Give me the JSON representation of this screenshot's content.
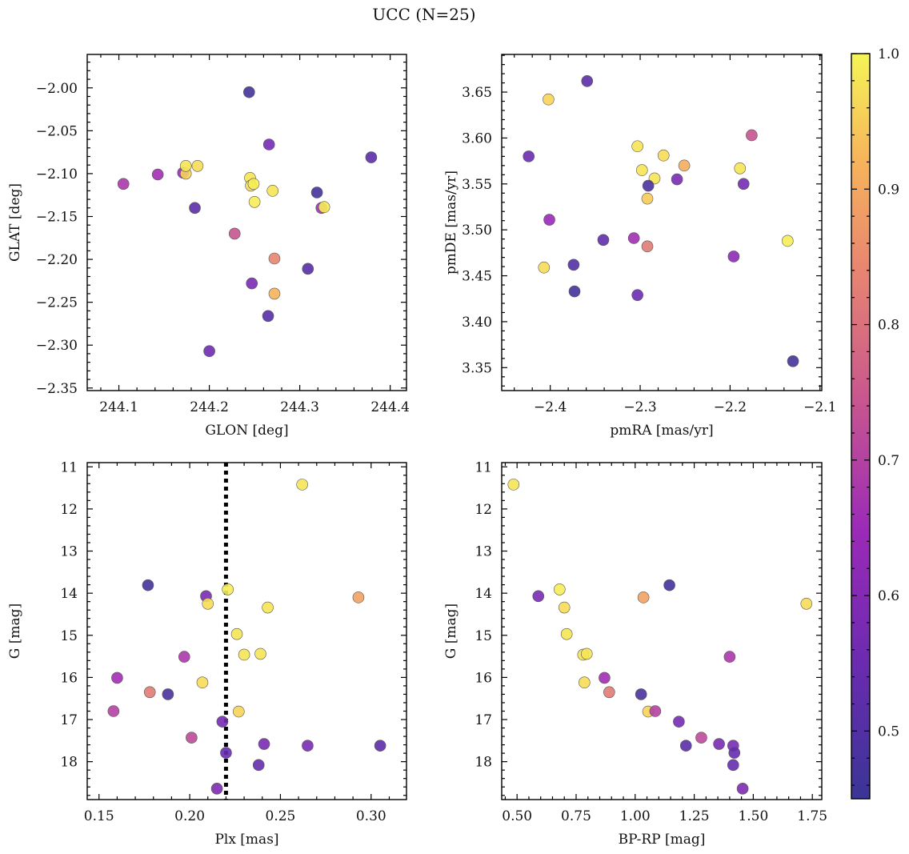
{
  "figure": {
    "title": "UCC (N=25)"
  },
  "colorbar": {
    "min": 0.45,
    "max": 1.0,
    "ticks": [
      0.5,
      0.6,
      0.7,
      0.8,
      0.9,
      1.0
    ],
    "tick_labels": [
      "0.5",
      "0.6",
      "0.7",
      "0.8",
      "0.9",
      "1.0"
    ],
    "colormap": "plasma"
  },
  "chart_data": [
    {
      "type": "scatter",
      "xlabel": "GLON [deg]",
      "ylabel": "GLAT [deg]",
      "xlim": [
        244.065,
        244.418
      ],
      "ylim": [
        -2.353,
        -1.961
      ],
      "xticks": [
        244.1,
        244.2,
        244.3,
        244.4
      ],
      "xtick_labels": [
        "244.1",
        "244.2",
        "244.3",
        "244.4"
      ],
      "yticks": [
        -2.0,
        -2.05,
        -2.1,
        -2.15,
        -2.2,
        -2.25,
        -2.3,
        -2.35
      ],
      "ytick_labels": [
        "−2.00",
        "−2.05",
        "−2.10",
        "−2.15",
        "−2.20",
        "−2.25",
        "−2.30",
        "−2.35"
      ],
      "points": [
        {
          "x": 244.244,
          "y": -2.005,
          "c": 0.47
        },
        {
          "x": 244.266,
          "y": -2.066,
          "c": 0.57
        },
        {
          "x": 244.379,
          "y": -2.081,
          "c": 0.52
        },
        {
          "x": 244.105,
          "y": -2.112,
          "c": 0.68
        },
        {
          "x": 244.143,
          "y": -2.101,
          "c": 0.66
        },
        {
          "x": 244.171,
          "y": -2.099,
          "c": 0.64
        },
        {
          "x": 244.174,
          "y": -2.1,
          "c": 0.96
        },
        {
          "x": 244.174,
          "y": -2.091,
          "c": 0.98
        },
        {
          "x": 244.187,
          "y": -2.091,
          "c": 0.97
        },
        {
          "x": 244.245,
          "y": -2.105,
          "c": 0.98
        },
        {
          "x": 244.246,
          "y": -2.114,
          "c": 0.97
        },
        {
          "x": 244.249,
          "y": -2.112,
          "c": 0.99
        },
        {
          "x": 244.25,
          "y": -2.133,
          "c": 0.99
        },
        {
          "x": 244.27,
          "y": -2.12,
          "c": 0.98
        },
        {
          "x": 244.319,
          "y": -2.122,
          "c": 0.47
        },
        {
          "x": 244.184,
          "y": -2.14,
          "c": 0.52
        },
        {
          "x": 244.324,
          "y": -2.14,
          "c": 0.66
        },
        {
          "x": 244.327,
          "y": -2.139,
          "c": 0.99
        },
        {
          "x": 244.228,
          "y": -2.17,
          "c": 0.74
        },
        {
          "x": 244.272,
          "y": -2.199,
          "c": 0.84
        },
        {
          "x": 244.309,
          "y": -2.211,
          "c": 0.51
        },
        {
          "x": 244.247,
          "y": -2.228,
          "c": 0.58
        },
        {
          "x": 244.272,
          "y": -2.24,
          "c": 0.92
        },
        {
          "x": 244.265,
          "y": -2.266,
          "c": 0.51
        },
        {
          "x": 244.2,
          "y": -2.307,
          "c": 0.56
        }
      ]
    },
    {
      "type": "scatter",
      "xlabel": "pmRA [mas/yr]",
      "ylabel": "pmDE [mas/yr]",
      "xlim": [
        -2.454,
        -2.098
      ],
      "ylim": [
        3.325,
        3.691
      ],
      "xticks": [
        -2.4,
        -2.3,
        -2.2,
        -2.1
      ],
      "xtick_labels": [
        "−2.4",
        "−2.3",
        "−2.2",
        "−2.1"
      ],
      "yticks": [
        3.35,
        3.4,
        3.45,
        3.5,
        3.55,
        3.6,
        3.65
      ],
      "ytick_labels": [
        "3.35",
        "3.40",
        "3.45",
        "3.50",
        "3.55",
        "3.60",
        "3.65"
      ],
      "points": [
        {
          "x": -2.359,
          "y": 3.662,
          "c": 0.52
        },
        {
          "x": -2.402,
          "y": 3.642,
          "c": 0.96
        },
        {
          "x": -2.424,
          "y": 3.58,
          "c": 0.55
        },
        {
          "x": -2.176,
          "y": 3.603,
          "c": 0.74
        },
        {
          "x": -2.303,
          "y": 3.591,
          "c": 0.98
        },
        {
          "x": -2.274,
          "y": 3.581,
          "c": 0.97
        },
        {
          "x": -2.298,
          "y": 3.565,
          "c": 0.98
        },
        {
          "x": -2.284,
          "y": 3.556,
          "c": 0.98
        },
        {
          "x": -2.251,
          "y": 3.57,
          "c": 0.91
        },
        {
          "x": -2.189,
          "y": 3.567,
          "c": 0.98
        },
        {
          "x": -2.259,
          "y": 3.555,
          "c": 0.58
        },
        {
          "x": -2.291,
          "y": 3.548,
          "c": 0.48
        },
        {
          "x": -2.185,
          "y": 3.55,
          "c": 0.57
        },
        {
          "x": -2.292,
          "y": 3.534,
          "c": 0.95
        },
        {
          "x": -2.401,
          "y": 3.511,
          "c": 0.64
        },
        {
          "x": -2.341,
          "y": 3.489,
          "c": 0.53
        },
        {
          "x": -2.307,
          "y": 3.491,
          "c": 0.66
        },
        {
          "x": -2.292,
          "y": 3.482,
          "c": 0.82
        },
        {
          "x": -2.136,
          "y": 3.488,
          "c": 0.99
        },
        {
          "x": -2.196,
          "y": 3.471,
          "c": 0.62
        },
        {
          "x": -2.374,
          "y": 3.462,
          "c": 0.5
        },
        {
          "x": -2.407,
          "y": 3.459,
          "c": 0.97
        },
        {
          "x": -2.373,
          "y": 3.433,
          "c": 0.47
        },
        {
          "x": -2.303,
          "y": 3.429,
          "c": 0.55
        },
        {
          "x": -2.13,
          "y": 3.357,
          "c": 0.47
        }
      ]
    },
    {
      "type": "scatter",
      "xlabel": "Plx [mas]",
      "ylabel": "G [mag]",
      "xlim": [
        0.1435,
        0.3195
      ],
      "ylim": [
        18.9,
        10.9
      ],
      "y_inverted": true,
      "xticks": [
        0.15,
        0.2,
        0.25,
        0.3
      ],
      "xtick_labels": [
        "0.15",
        "0.20",
        "0.25",
        "0.30"
      ],
      "yticks": [
        11,
        12,
        13,
        14,
        15,
        16,
        17,
        18
      ],
      "ytick_labels": [
        "11",
        "12",
        "13",
        "14",
        "15",
        "16",
        "17",
        "18"
      ],
      "vline": 0.22,
      "points": [
        {
          "x": 0.262,
          "y": 11.42,
          "c": 0.98
        },
        {
          "x": 0.177,
          "y": 13.81,
          "c": 0.47
        },
        {
          "x": 0.221,
          "y": 13.91,
          "c": 0.99
        },
        {
          "x": 0.209,
          "y": 14.07,
          "c": 0.58
        },
        {
          "x": 0.21,
          "y": 14.25,
          "c": 0.97
        },
        {
          "x": 0.293,
          "y": 14.1,
          "c": 0.89
        },
        {
          "x": 0.243,
          "y": 14.34,
          "c": 0.98
        },
        {
          "x": 0.226,
          "y": 14.97,
          "c": 0.98
        },
        {
          "x": 0.197,
          "y": 15.51,
          "c": 0.68
        },
        {
          "x": 0.23,
          "y": 15.46,
          "c": 0.98
        },
        {
          "x": 0.239,
          "y": 15.44,
          "c": 0.98
        },
        {
          "x": 0.16,
          "y": 16.01,
          "c": 0.66
        },
        {
          "x": 0.207,
          "y": 16.12,
          "c": 0.97
        },
        {
          "x": 0.178,
          "y": 16.35,
          "c": 0.82
        },
        {
          "x": 0.188,
          "y": 16.4,
          "c": 0.48
        },
        {
          "x": 0.158,
          "y": 16.8,
          "c": 0.7
        },
        {
          "x": 0.227,
          "y": 16.81,
          "c": 0.96
        },
        {
          "x": 0.218,
          "y": 17.05,
          "c": 0.57
        },
        {
          "x": 0.201,
          "y": 17.43,
          "c": 0.72
        },
        {
          "x": 0.241,
          "y": 17.58,
          "c": 0.58
        },
        {
          "x": 0.265,
          "y": 17.62,
          "c": 0.58
        },
        {
          "x": 0.305,
          "y": 17.62,
          "c": 0.52
        },
        {
          "x": 0.22,
          "y": 17.79,
          "c": 0.54
        },
        {
          "x": 0.238,
          "y": 18.08,
          "c": 0.54
        },
        {
          "x": 0.215,
          "y": 18.64,
          "c": 0.59
        }
      ]
    },
    {
      "type": "scatter",
      "xlabel": "BP-RP [mag]",
      "ylabel": "G [mag]",
      "xlim": [
        0.435,
        1.79
      ],
      "ylim": [
        18.9,
        10.9
      ],
      "y_inverted": true,
      "xticks": [
        0.5,
        0.75,
        1.0,
        1.25,
        1.5,
        1.75
      ],
      "xtick_labels": [
        "0.50",
        "0.75",
        "1.00",
        "1.25",
        "1.50",
        "1.75"
      ],
      "yticks": [
        11,
        12,
        13,
        14,
        15,
        16,
        17,
        18
      ],
      "ytick_labels": [
        "11",
        "12",
        "13",
        "14",
        "15",
        "16",
        "17",
        "18"
      ],
      "points": [
        {
          "x": 0.485,
          "y": 11.42,
          "c": 0.98
        },
        {
          "x": 0.59,
          "y": 14.07,
          "c": 0.58
        },
        {
          "x": 0.68,
          "y": 13.91,
          "c": 0.99
        },
        {
          "x": 0.7,
          "y": 14.34,
          "c": 0.97
        },
        {
          "x": 0.71,
          "y": 14.97,
          "c": 0.98
        },
        {
          "x": 0.78,
          "y": 15.46,
          "c": 0.98
        },
        {
          "x": 0.795,
          "y": 15.44,
          "c": 0.98
        },
        {
          "x": 0.785,
          "y": 16.12,
          "c": 0.97
        },
        {
          "x": 0.87,
          "y": 16.01,
          "c": 0.66
        },
        {
          "x": 0.89,
          "y": 16.35,
          "c": 0.82
        },
        {
          "x": 1.025,
          "y": 16.4,
          "c": 0.48
        },
        {
          "x": 1.035,
          "y": 14.1,
          "c": 0.89
        },
        {
          "x": 1.145,
          "y": 13.81,
          "c": 0.47
        },
        {
          "x": 1.055,
          "y": 16.81,
          "c": 0.96
        },
        {
          "x": 1.085,
          "y": 16.8,
          "c": 0.7
        },
        {
          "x": 1.185,
          "y": 17.05,
          "c": 0.57
        },
        {
          "x": 1.215,
          "y": 17.62,
          "c": 0.52
        },
        {
          "x": 1.28,
          "y": 17.43,
          "c": 0.72
        },
        {
          "x": 1.355,
          "y": 17.58,
          "c": 0.58
        },
        {
          "x": 1.4,
          "y": 15.51,
          "c": 0.68
        },
        {
          "x": 1.415,
          "y": 17.62,
          "c": 0.58
        },
        {
          "x": 1.42,
          "y": 17.79,
          "c": 0.54
        },
        {
          "x": 1.415,
          "y": 18.08,
          "c": 0.54
        },
        {
          "x": 1.455,
          "y": 18.64,
          "c": 0.59
        },
        {
          "x": 1.725,
          "y": 14.25,
          "c": 0.97
        }
      ]
    }
  ]
}
